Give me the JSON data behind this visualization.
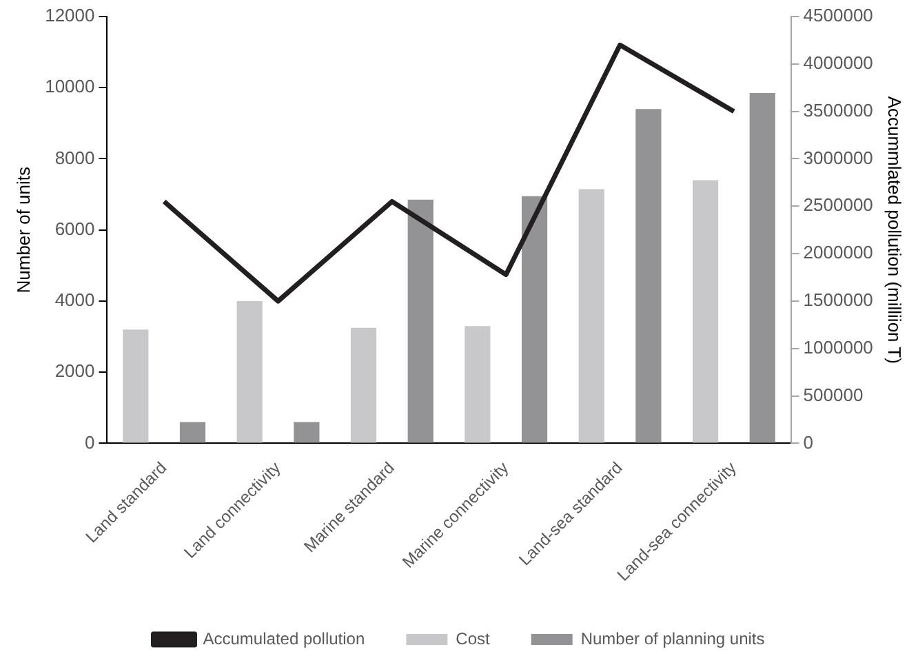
{
  "chart_data": {
    "type": "bar",
    "ylabel": "Number of units",
    "y2label": "Accummlated pollution (milliion T)",
    "categories": [
      "Land standard",
      "Land connectivity",
      "Marine standard",
      "Marine connectivity",
      "Land-sea standard",
      "Land-sea connectivity"
    ],
    "series": [
      {
        "name": "Cost",
        "color": "#c8c8ca",
        "values": [
          3200,
          4000,
          3250,
          3300,
          7150,
          7400
        ]
      },
      {
        "name": "Number of planning units",
        "color": "#939396",
        "values": [
          600,
          600,
          6850,
          6950,
          9400,
          9850
        ]
      },
      {
        "name": "Accumulated pollution",
        "type": "line",
        "axis": "y2",
        "color": "#231f20",
        "values": [
          2550000,
          1500000,
          2550000,
          1780000,
          4200000,
          3500000
        ]
      }
    ],
    "ylim": [
      0,
      12000
    ],
    "yticks": [
      0,
      2000,
      4000,
      6000,
      8000,
      10000,
      12000
    ],
    "y2lim": [
      0,
      4500000
    ],
    "y2ticks": [
      0,
      500000,
      1000000,
      1500000,
      2000000,
      2500000,
      3000000,
      3500000,
      4000000,
      4500000
    ],
    "grid": false,
    "legend": "bottom",
    "marker": "none"
  }
}
